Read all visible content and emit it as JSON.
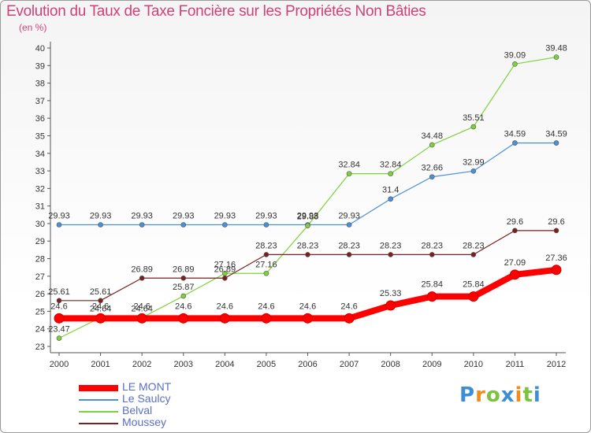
{
  "title": "Evolution du Taux de Taxe Foncière sur les Propriétés Non Bâties",
  "subtitle": "(en %)",
  "brand": "Proxiti",
  "colors": {
    "title": "#d0417a",
    "axis": "#555555",
    "grid": "#dddddd",
    "legend_text": "#5a6fc7"
  },
  "chart_data": {
    "type": "line",
    "x": [
      2000,
      2001,
      2002,
      2003,
      2004,
      2005,
      2006,
      2007,
      2008,
      2009,
      2010,
      2011,
      2012
    ],
    "ylim": [
      23,
      40
    ],
    "yticks": [
      23,
      24,
      25,
      26,
      27,
      28,
      29,
      30,
      31,
      32,
      33,
      34,
      35,
      36,
      37,
      38,
      39,
      40
    ],
    "series": [
      {
        "name": "LE MONT",
        "color": "#ff0000",
        "values": [
          24.6,
          24.6,
          24.6,
          24.6,
          24.6,
          24.6,
          24.6,
          24.6,
          25.33,
          25.84,
          25.84,
          27.09,
          27.36
        ],
        "labels": [
          "24.6",
          "24.6",
          "24.6",
          "24.6",
          "24.6",
          "24.6",
          "24.6",
          "24.6",
          "25.33",
          "25.84",
          "25.84",
          "27.09",
          "27.36"
        ]
      },
      {
        "name": "Le Saulcy",
        "color": "#4a90d9",
        "values": [
          29.93,
          29.93,
          29.93,
          29.93,
          29.93,
          29.93,
          29.93,
          29.93,
          31.4,
          32.66,
          32.99,
          34.59,
          34.59
        ],
        "labels": [
          "29.93",
          "29.93",
          "29.93",
          "29.93",
          "29.93",
          "29.93",
          "29.93",
          "29.93",
          "31.4",
          "32.66",
          "32.99",
          "34.59",
          "34.59"
        ]
      },
      {
        "name": "Belval",
        "color": "#7dd23a",
        "values": [
          23.47,
          24.64,
          24.64,
          25.87,
          27.16,
          27.16,
          29.88,
          32.84,
          32.84,
          34.48,
          35.51,
          39.09,
          39.48
        ],
        "labels": [
          "23.47",
          "24.64",
          "24.64",
          "25.87",
          "27.16",
          "27.16",
          "29.88",
          "32.84",
          "32.84",
          "34.48",
          "35.51",
          "39.09",
          "39.48"
        ]
      },
      {
        "name": "Moussey",
        "color": "#7a2020",
        "values": [
          25.61,
          25.61,
          26.89,
          26.89,
          26.89,
          28.23,
          28.23,
          28.23,
          28.23,
          28.23,
          28.23,
          29.6,
          29.6
        ],
        "labels": [
          "25.61",
          "25.61",
          "26.89",
          "26.89",
          "26.89",
          "28.23",
          "28.23",
          "28.23",
          "28.23",
          "28.23",
          "28.23",
          "29.6",
          "29.6"
        ]
      }
    ],
    "legend_position": "bottom-left",
    "grid": false
  }
}
